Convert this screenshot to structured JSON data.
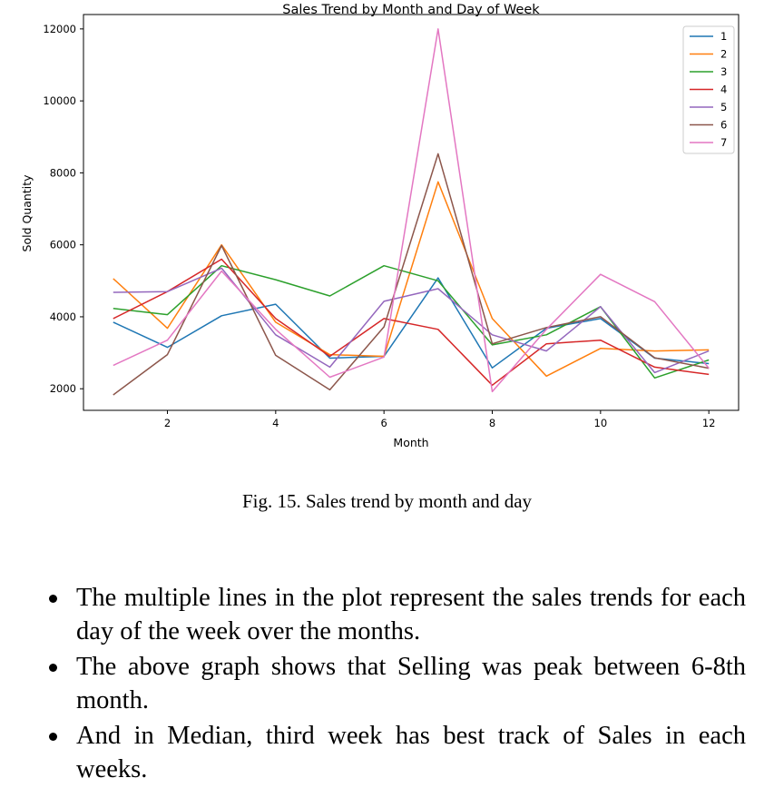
{
  "chart_data": {
    "type": "line",
    "title": "Sales Trend by Month and Day of Week",
    "xlabel": "Month",
    "ylabel": "Sold Quantity",
    "x": [
      1,
      2,
      3,
      4,
      5,
      6,
      7,
      8,
      9,
      10,
      11,
      12
    ],
    "xticks": [
      2,
      4,
      6,
      8,
      10,
      12
    ],
    "yticks": [
      2000,
      4000,
      6000,
      8000,
      10000,
      12000
    ],
    "xlim": [
      0.45,
      12.55
    ],
    "ylim": [
      1400,
      12400
    ],
    "grid": false,
    "legend_position": "top-right",
    "series": [
      {
        "name": "1",
        "color": "#1f77b4",
        "values": [
          3850,
          3150,
          4030,
          4350,
          2850,
          2900,
          5080,
          2580,
          3680,
          3950,
          2850,
          2700
        ]
      },
      {
        "name": "2",
        "color": "#ff7f0e",
        "values": [
          5060,
          3680,
          6000,
          3850,
          2950,
          2900,
          7750,
          3950,
          2350,
          3120,
          3050,
          3080
        ]
      },
      {
        "name": "3",
        "color": "#2ca02c",
        "values": [
          4230,
          4060,
          5420,
          5030,
          4580,
          5420,
          5000,
          3220,
          3500,
          4280,
          2300,
          2800
        ]
      },
      {
        "name": "4",
        "color": "#d62728",
        "values": [
          3950,
          4700,
          5600,
          3950,
          2900,
          3950,
          3650,
          2100,
          3250,
          3350,
          2600,
          2400
        ]
      },
      {
        "name": "5",
        "color": "#9467bd",
        "values": [
          4680,
          4700,
          5350,
          3500,
          2600,
          4430,
          4780,
          3500,
          3050,
          4280,
          2450,
          3050
        ]
      },
      {
        "name": "6",
        "color": "#8c564b",
        "values": [
          1830,
          2950,
          5980,
          2930,
          1970,
          3720,
          8530,
          3250,
          3700,
          4000,
          2860,
          2570
        ]
      },
      {
        "name": "7",
        "color": "#e377c2",
        "values": [
          2650,
          3350,
          5270,
          3650,
          2320,
          2880,
          12000,
          1920,
          3650,
          5180,
          4420,
          2570
        ]
      }
    ]
  },
  "caption": "Fig. 15.  Sales trend by month and day",
  "bullets": [
    "The multiple lines in the plot represent the sales trends for each day of the week over the months.",
    "The above graph shows that Selling was peak between 6-8th month.",
    "And in Median, third week has best track of Sales in each weeks."
  ]
}
